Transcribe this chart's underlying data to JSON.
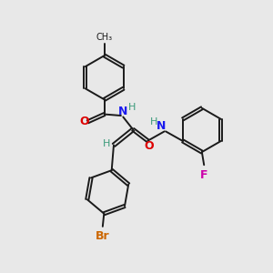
{
  "bg_color": "#e8e8e8",
  "bond_color": "#1a1a1a",
  "bond_width": 1.4,
  "figsize": [
    3.0,
    3.0
  ],
  "dpi": 100,
  "xlim": [
    0,
    10
  ],
  "ylim": [
    0,
    10
  ],
  "colors": {
    "O": "#dd0000",
    "N": "#1a1aee",
    "H": "#3a9a7a",
    "Br": "#cc6600",
    "F": "#cc00aa",
    "C": "#1a1a1a"
  }
}
